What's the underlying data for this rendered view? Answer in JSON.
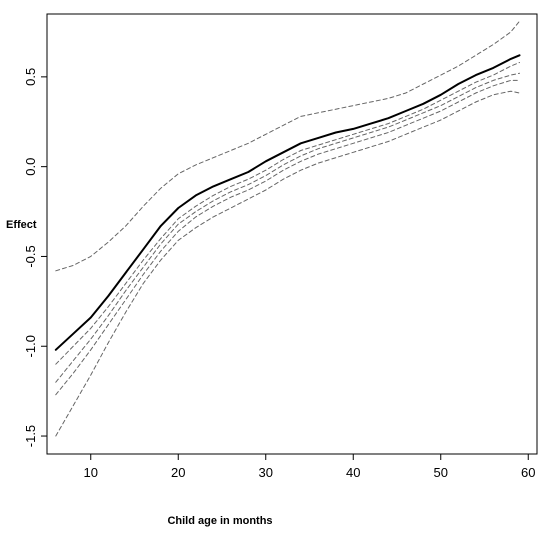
{
  "chart_data": {
    "type": "line",
    "title": "",
    "xlabel": "Child age in months",
    "ylabel": "Effect",
    "xlim": [
      5,
      61
    ],
    "ylim": [
      -1.6,
      0.85
    ],
    "x_ticks": [
      10,
      20,
      30,
      40,
      50,
      60
    ],
    "y_ticks": [
      -1.5,
      -1.0,
      -0.5,
      0.0,
      0.5
    ],
    "x_tick_labels": [
      "10",
      "20",
      "30",
      "40",
      "50",
      "60"
    ],
    "y_tick_labels": [
      "-1.5",
      "-1.0",
      "-0.5",
      "0.0",
      "0.5"
    ],
    "grid": false,
    "legend": "none",
    "x": [
      6,
      8,
      10,
      12,
      14,
      16,
      18,
      20,
      22,
      24,
      26,
      28,
      30,
      32,
      34,
      36,
      38,
      40,
      42,
      44,
      46,
      48,
      50,
      52,
      54,
      56,
      58,
      59
    ],
    "series": [
      {
        "style": "solid",
        "color": "#000000",
        "values": [
          -1.02,
          -0.93,
          -0.84,
          -0.72,
          -0.59,
          -0.46,
          -0.33,
          -0.23,
          -0.16,
          -0.11,
          -0.07,
          -0.03,
          0.03,
          0.08,
          0.13,
          0.16,
          0.19,
          0.21,
          0.24,
          0.27,
          0.31,
          0.35,
          0.4,
          0.46,
          0.51,
          0.55,
          0.6,
          0.62
        ]
      },
      {
        "style": "dashed",
        "color": "#666666",
        "values": [
          -0.58,
          -0.55,
          -0.5,
          -0.42,
          -0.33,
          -0.22,
          -0.12,
          -0.04,
          0.01,
          0.05,
          0.09,
          0.13,
          0.18,
          0.23,
          0.28,
          0.3,
          0.32,
          0.34,
          0.36,
          0.38,
          0.41,
          0.46,
          0.51,
          0.56,
          0.62,
          0.68,
          0.75,
          0.81
        ]
      },
      {
        "style": "dashed",
        "color": "#666666",
        "values": [
          -1.1,
          -1.0,
          -0.9,
          -0.78,
          -0.65,
          -0.52,
          -0.4,
          -0.29,
          -0.22,
          -0.16,
          -0.11,
          -0.07,
          -0.02,
          0.04,
          0.09,
          0.12,
          0.15,
          0.18,
          0.21,
          0.24,
          0.28,
          0.32,
          0.37,
          0.42,
          0.47,
          0.51,
          0.56,
          0.58
        ]
      },
      {
        "style": "dashed",
        "color": "#666666",
        "values": [
          -1.2,
          -1.08,
          -0.96,
          -0.83,
          -0.69,
          -0.56,
          -0.43,
          -0.32,
          -0.25,
          -0.19,
          -0.14,
          -0.1,
          -0.05,
          0.01,
          0.06,
          0.1,
          0.13,
          0.16,
          0.19,
          0.22,
          0.26,
          0.3,
          0.34,
          0.39,
          0.44,
          0.48,
          0.51,
          0.52
        ]
      },
      {
        "style": "dashed",
        "color": "#666666",
        "values": [
          -1.27,
          -1.15,
          -1.02,
          -0.88,
          -0.74,
          -0.6,
          -0.47,
          -0.36,
          -0.28,
          -0.22,
          -0.17,
          -0.13,
          -0.08,
          -0.02,
          0.03,
          0.07,
          0.1,
          0.13,
          0.16,
          0.19,
          0.23,
          0.27,
          0.31,
          0.36,
          0.41,
          0.45,
          0.48,
          0.48
        ]
      },
      {
        "style": "dashed",
        "color": "#666666",
        "values": [
          -1.5,
          -1.33,
          -1.16,
          -0.98,
          -0.81,
          -0.65,
          -0.52,
          -0.41,
          -0.34,
          -0.28,
          -0.23,
          -0.18,
          -0.13,
          -0.07,
          -0.02,
          0.02,
          0.05,
          0.08,
          0.11,
          0.14,
          0.18,
          0.22,
          0.26,
          0.31,
          0.36,
          0.4,
          0.42,
          0.41
        ]
      }
    ]
  }
}
